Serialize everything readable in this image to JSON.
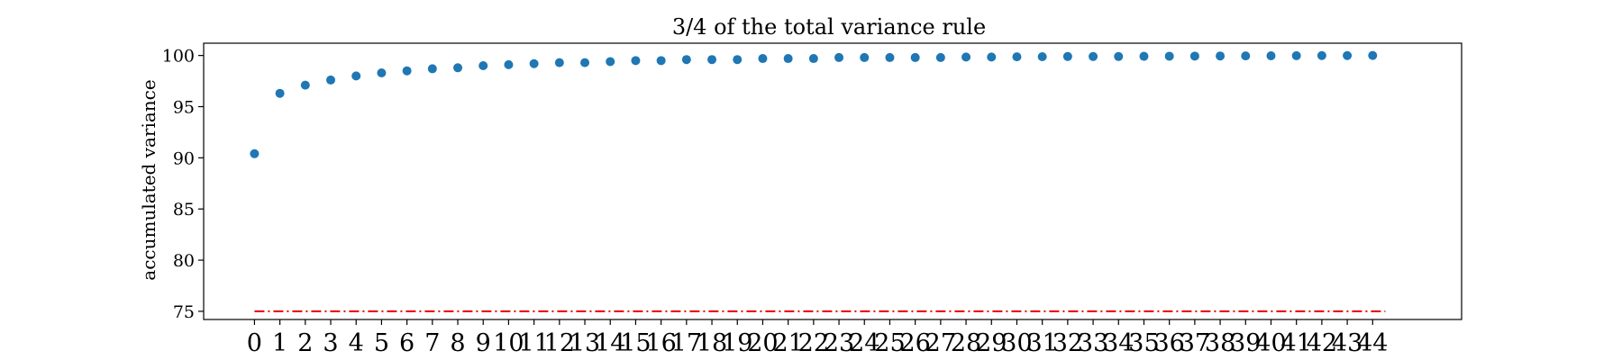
{
  "chart_data": {
    "type": "scatter",
    "title": "3/4 of the total variance rule",
    "xlabel": "",
    "ylabel": "accumulated variance",
    "x": [
      0,
      1,
      2,
      3,
      4,
      5,
      6,
      7,
      8,
      9,
      10,
      11,
      12,
      13,
      14,
      15,
      16,
      17,
      18,
      19,
      20,
      21,
      22,
      23,
      24,
      25,
      26,
      27,
      28,
      29,
      30,
      31,
      32,
      33,
      34,
      35,
      36,
      37,
      38,
      39,
      40,
      41,
      42,
      43,
      44
    ],
    "x_tick_labels": [
      "0",
      "1",
      "2",
      "3",
      "4",
      "5",
      "6",
      "7",
      "8",
      "9",
      "10",
      "11",
      "12",
      "13",
      "14",
      "15",
      "16",
      "17",
      "18",
      "19",
      "20",
      "21",
      "22",
      "23",
      "24",
      "25",
      "26",
      "27",
      "28",
      "29",
      "30",
      "31",
      "32",
      "33",
      "34",
      "35",
      "36",
      "37",
      "38",
      "39",
      "40",
      "41",
      "42",
      "43",
      "44"
    ],
    "y": [
      90.4,
      96.3,
      97.1,
      97.6,
      98.0,
      98.3,
      98.5,
      98.7,
      98.8,
      99.0,
      99.1,
      99.2,
      99.3,
      99.3,
      99.4,
      99.5,
      99.5,
      99.6,
      99.6,
      99.6,
      99.7,
      99.7,
      99.7,
      99.8,
      99.8,
      99.8,
      99.8,
      99.8,
      99.85,
      99.85,
      99.87,
      99.88,
      99.9,
      99.9,
      99.9,
      99.92,
      99.93,
      99.94,
      99.95,
      99.96,
      99.97,
      99.98,
      99.99,
      99.99,
      100.0
    ],
    "y_ticks": [
      75,
      80,
      85,
      90,
      95,
      100
    ],
    "y_tick_labels": [
      "75",
      "80",
      "85",
      "90",
      "95",
      "100"
    ],
    "xlim": [
      -2,
      47.5
    ],
    "ylim": [
      74.2,
      101.2
    ],
    "threshold": {
      "value": 75,
      "x_start": 0,
      "x_end": 44.5,
      "style": "dash-dot",
      "color": "#e8000b"
    },
    "marker_color": "#1f77b4",
    "grid": false
  }
}
